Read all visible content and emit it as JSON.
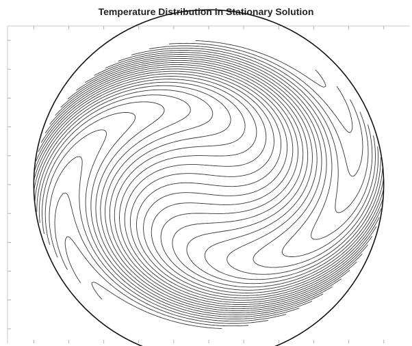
{
  "chart_data": {
    "type": "contour",
    "title": "Temperature Distribution in Stationary Solution",
    "xlabel": "",
    "ylabel": "",
    "xlim": [
      -1.15,
      1.15
    ],
    "ylim": [
      -1.1,
      1.1
    ],
    "x_tick_labels_shown": false,
    "y_tick_labels_shown": false,
    "grid": false,
    "legend": "none",
    "domain": "unit-disk",
    "contour_levels": 30,
    "line_color": "#333333",
    "boundary_color": "#111111",
    "field": "swirling temperature field (rotation clockwise from the center, forming an S-shaped spiral)"
  }
}
